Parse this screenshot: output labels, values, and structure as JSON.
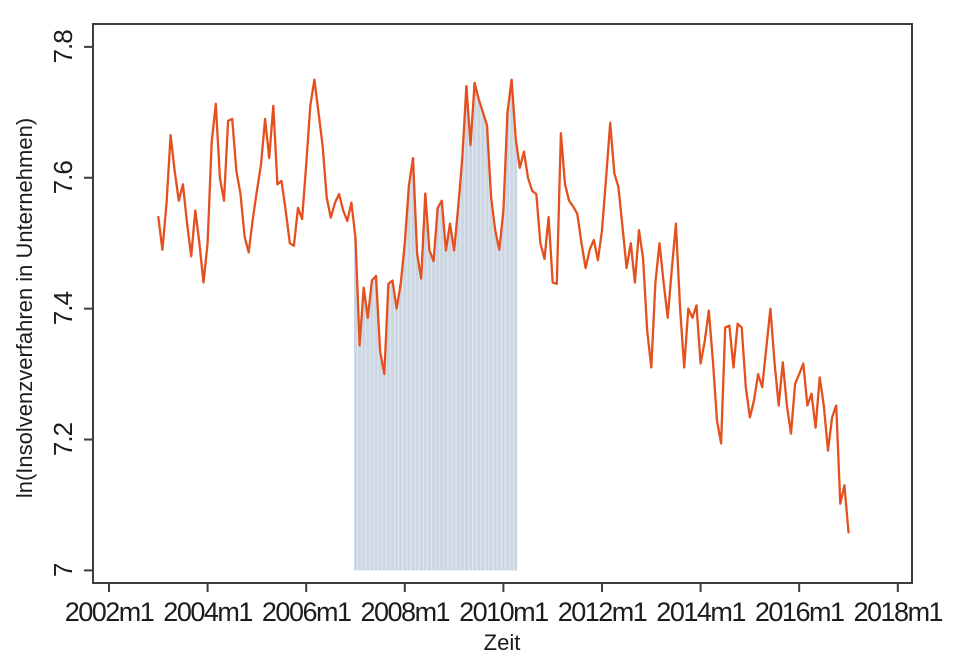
{
  "page": {
    "background": "#ffffff"
  },
  "chart_data": {
    "type": "line",
    "title": "",
    "xlabel": "Zeit",
    "ylabel": "ln(Insolvenzverfahren in Unternehmen)",
    "frequency": "monthly",
    "x_start": "2003m1",
    "x_end": "2017m1",
    "xlim": [
      "2002m1",
      "2018m4"
    ],
    "ylim": [
      6.98,
      7.83
    ],
    "grid": false,
    "legend": "none",
    "line_color": "#e4501e",
    "axis_color": "#3d3d3d",
    "text_color": "#1c1c1c",
    "x_ticks": [
      "2002m1",
      "2004m1",
      "2006m1",
      "2008m1",
      "2010m1",
      "2012m1",
      "2014m1",
      "2016m1",
      "2018m1"
    ],
    "y_ticks": [
      {
        "value": 7.0,
        "label": "7"
      },
      {
        "value": 7.2,
        "label": "7.2"
      },
      {
        "value": 7.4,
        "label": "7.4"
      },
      {
        "value": 7.6,
        "label": "7.6"
      },
      {
        "value": 7.8,
        "label": "7.8"
      }
    ],
    "shaded_period": {
      "from": "2007m1",
      "to": "2010m4",
      "baseline": 7.0,
      "style": "monthly vertical bars filling area under line",
      "bar_color": "#ccd6e2",
      "gap_color": "#dfe6ed"
    },
    "series": [
      {
        "name": "ln(Insolvenzverfahren in Unternehmen)",
        "values": [
          7.54,
          7.49,
          7.56,
          7.665,
          7.61,
          7.565,
          7.59,
          7.53,
          7.48,
          7.55,
          7.5,
          7.44,
          7.5,
          7.655,
          7.713,
          7.6,
          7.565,
          7.687,
          7.69,
          7.61,
          7.575,
          7.51,
          7.486,
          7.537,
          7.58,
          7.62,
          7.69,
          7.63,
          7.71,
          7.59,
          7.595,
          7.55,
          7.5,
          7.496,
          7.554,
          7.537,
          7.62,
          7.71,
          7.75,
          7.7,
          7.649,
          7.57,
          7.539,
          7.562,
          7.575,
          7.55,
          7.534,
          7.562,
          7.508,
          7.344,
          7.432,
          7.386,
          7.443,
          7.45,
          7.335,
          7.3,
          7.438,
          7.443,
          7.4,
          7.438,
          7.5,
          7.588,
          7.63,
          7.484,
          7.446,
          7.576,
          7.489,
          7.473,
          7.554,
          7.565,
          7.489,
          7.53,
          7.489,
          7.555,
          7.63,
          7.74,
          7.65,
          7.745,
          7.72,
          7.7,
          7.68,
          7.57,
          7.52,
          7.49,
          7.55,
          7.7,
          7.75,
          7.66,
          7.615,
          7.64,
          7.6,
          7.58,
          7.575,
          7.5,
          7.476,
          7.54,
          7.44,
          7.438,
          7.668,
          7.59,
          7.565,
          7.556,
          7.545,
          7.5,
          7.462,
          7.49,
          7.505,
          7.474,
          7.52,
          7.6,
          7.684,
          7.607,
          7.586,
          7.525,
          7.462,
          7.5,
          7.44,
          7.52,
          7.476,
          7.366,
          7.31,
          7.44,
          7.5,
          7.44,
          7.386,
          7.46,
          7.53,
          7.4,
          7.31,
          7.4,
          7.386,
          7.405,
          7.316,
          7.35,
          7.397,
          7.32,
          7.229,
          7.194,
          7.371,
          7.374,
          7.31,
          7.377,
          7.371,
          7.28,
          7.234,
          7.26,
          7.3,
          7.28,
          7.34,
          7.4,
          7.318,
          7.252,
          7.318,
          7.252,
          7.209,
          7.285,
          7.3,
          7.316,
          7.252,
          7.27,
          7.218,
          7.295,
          7.252,
          7.183,
          7.234,
          7.252,
          7.102,
          7.13,
          7.058
        ]
      }
    ]
  }
}
